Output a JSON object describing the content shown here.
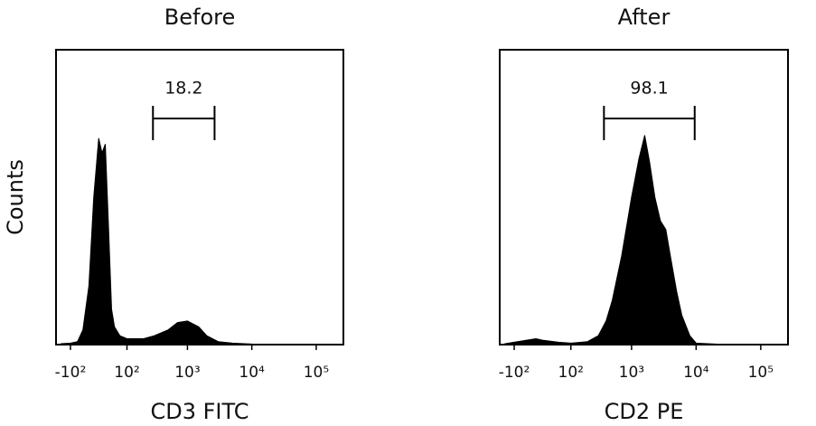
{
  "chart_data": [
    {
      "type": "area",
      "title": "Before",
      "xlabel": "CD3 FITC",
      "ylabel": "Counts",
      "x_scale": "biexponential",
      "color": "#000000",
      "x": [
        -150,
        -100,
        -70,
        -50,
        -30,
        -15,
        0,
        10,
        20,
        30,
        40,
        50,
        70,
        100,
        150,
        200,
        300,
        500,
        700,
        1000,
        1500,
        2000,
        3000,
        5000,
        10000,
        100000
      ],
      "values": [
        0.3,
        0.5,
        1,
        5,
        20,
        50,
        70,
        65,
        68,
        40,
        12,
        6,
        3,
        2,
        2,
        2,
        3,
        5,
        7.5,
        8,
        6,
        3,
        1,
        0.5,
        0.2,
        0
      ],
      "xlim": [
        -184,
        264000
      ],
      "ylim": [
        0,
        100
      ],
      "xticks": [
        {
          "value": -100,
          "label": "-10²"
        },
        {
          "value": 100,
          "label": "10²"
        },
        {
          "value": 1000,
          "label": "10³"
        },
        {
          "value": 10000,
          "label": "10⁴"
        },
        {
          "value": 100000,
          "label": "10⁵"
        }
      ],
      "gate": {
        "percent": 18.2,
        "range": [
          286,
          2640
        ]
      }
    },
    {
      "type": "area",
      "title": "After",
      "xlabel": "CD2 PE",
      "x_scale": "biexponential",
      "color": "#000000",
      "x": [
        -150,
        -50,
        -20,
        0,
        50,
        100,
        200,
        300,
        400,
        500,
        700,
        1000,
        1300,
        1600,
        1900,
        2300,
        2800,
        3400,
        4000,
        5000,
        6000,
        8000,
        10000,
        30000,
        100000
      ],
      "values": [
        0.3,
        1.5,
        2,
        1.5,
        0.8,
        0.5,
        1,
        3,
        8,
        15,
        30,
        50,
        63,
        71,
        62,
        50,
        42,
        39,
        30,
        18,
        10,
        3,
        0.5,
        0,
        0
      ],
      "xlim": [
        -184,
        264000
      ],
      "ylim": [
        0,
        100
      ],
      "xticks": [
        {
          "value": -100,
          "label": "-10²"
        },
        {
          "value": 100,
          "label": "10²"
        },
        {
          "value": 1000,
          "label": "10³"
        },
        {
          "value": 10000,
          "label": "10⁴"
        },
        {
          "value": 100000,
          "label": "10⁵"
        }
      ],
      "gate": {
        "percent": 98.1,
        "range": [
          370,
          9500
        ]
      }
    }
  ]
}
